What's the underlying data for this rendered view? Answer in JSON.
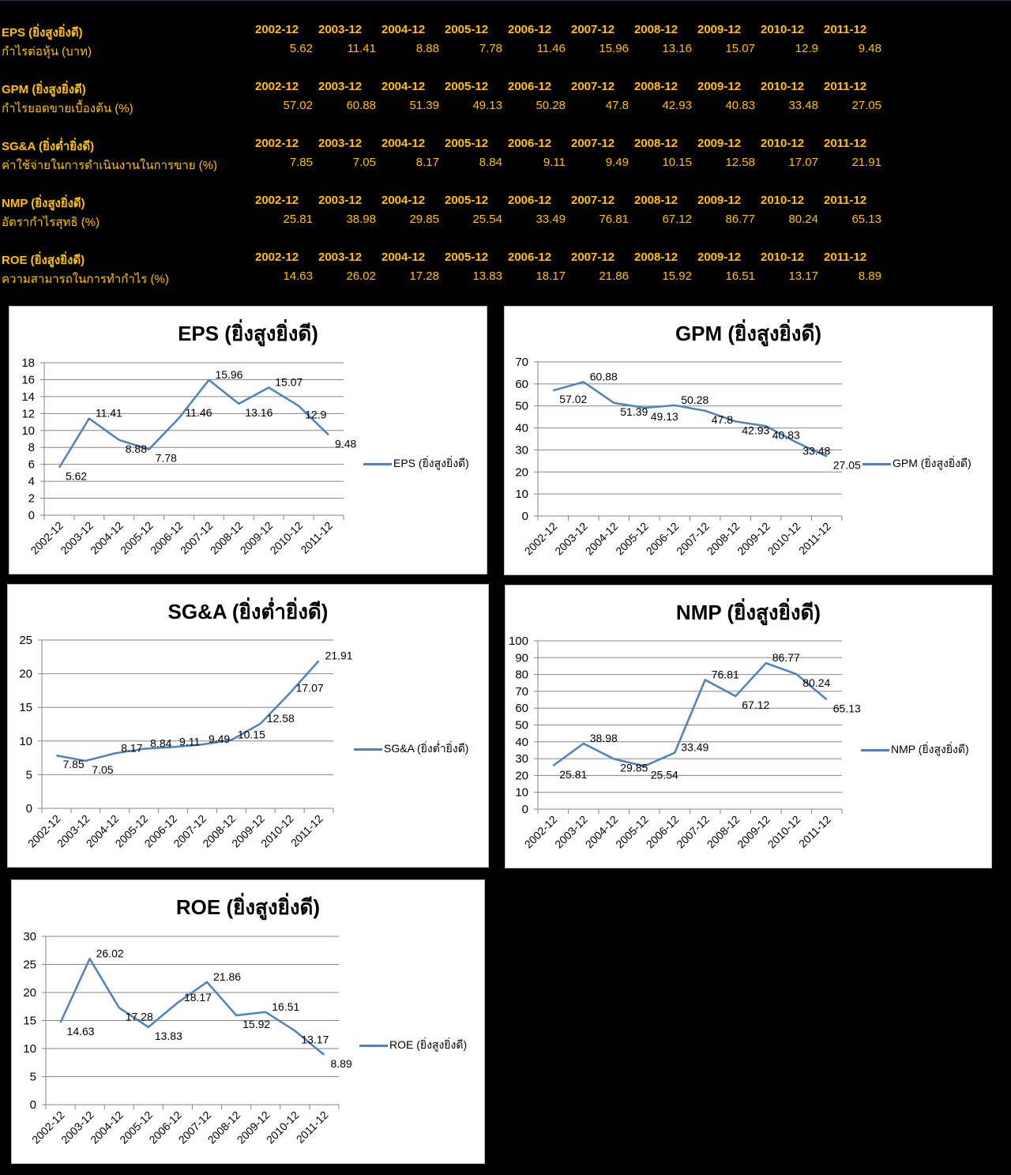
{
  "table": {
    "metrics": [
      {
        "name": "EPS (ยิ่งสูงยิ่งดี)",
        "desc": "กำไรต่อหุ้น    (บาท)"
      },
      {
        "name": "GPM (ยิ่งสูงยิ่งดี)",
        "desc": "กำไรยอดขายเบื้องต้น    (%)"
      },
      {
        "name": "SG&A (ยิ่งต่ำยิ่งดี)",
        "desc": "ค่าใช้จ่ายในการดำเนินงานในการขาย    (%)"
      },
      {
        "name": "NMP (ยิ่งสูงยิ่งดี)",
        "desc": "อัตรากำไรสุทธิ    (%)"
      },
      {
        "name": "ROE (ยิ่งสูงยิ่งดี)",
        "desc": "ความสามารถในการทำกำไร    (%)"
      }
    ]
  },
  "colors": {
    "table_text": "#ffc000",
    "series": "#4f81bd",
    "background": "#000000"
  },
  "chart_data": [
    {
      "type": "line",
      "title": "EPS (ยิ่งสูงยิ่งดี)",
      "legend": "EPS (ยิ่งสูงยิ่งดี)",
      "legend_position": "right",
      "categories": [
        "2002-12",
        "2003-12",
        "2004-12",
        "2005-12",
        "2006-12",
        "2007-12",
        "2008-12",
        "2009-12",
        "2010-12",
        "2011-12"
      ],
      "values": [
        "5.62",
        "11.41",
        "8.88",
        "7.78",
        "11.46",
        "15.96",
        "13.16",
        "15.07",
        "12.9",
        "9.48"
      ],
      "ylim": [
        0,
        18
      ],
      "ystep": 2,
      "yticks": [
        "0",
        "2",
        "4",
        "6",
        "8",
        "10",
        "12",
        "14",
        "16",
        "18"
      ],
      "grid": true
    },
    {
      "type": "line",
      "title": "GPM (ยิ่งสูงยิ่งดี)",
      "legend": "GPM (ยิ่งสูงยิ่งดี)",
      "legend_position": "right",
      "categories": [
        "2002-12",
        "2003-12",
        "2004-12",
        "2005-12",
        "2006-12",
        "2007-12",
        "2008-12",
        "2009-12",
        "2010-12",
        "2011-12"
      ],
      "values": [
        "57.02",
        "60.88",
        "51.39",
        "49.13",
        "50.28",
        "47.8",
        "42.93",
        "40.83",
        "33.48",
        "27.05"
      ],
      "ylim": [
        0,
        70
      ],
      "ystep": 10,
      "yticks": [
        "0",
        "10",
        "20",
        "30",
        "40",
        "50",
        "60",
        "70"
      ],
      "grid": true
    },
    {
      "type": "line",
      "title": "SG&A (ยิ่งต่ำยิ่งดี)",
      "legend": "SG&A (ยิ่งต่ำยิ่งดี)",
      "legend_position": "right",
      "categories": [
        "2002-12",
        "2003-12",
        "2004-12",
        "2005-12",
        "2006-12",
        "2007-12",
        "2008-12",
        "2009-12",
        "2010-12",
        "2011-12"
      ],
      "values": [
        "7.85",
        "7.05",
        "8.17",
        "8.84",
        "9.11",
        "9.49",
        "10.15",
        "12.58",
        "17.07",
        "21.91"
      ],
      "ylim": [
        0,
        25
      ],
      "ystep": 5,
      "yticks": [
        "0",
        "5",
        "10",
        "15",
        "20",
        "25"
      ],
      "grid": true
    },
    {
      "type": "line",
      "title": "NMP (ยิ่งสูงยิ่งดี)",
      "legend": "NMP (ยิ่งสูงยิ่งดี)",
      "legend_position": "right",
      "categories": [
        "2002-12",
        "2003-12",
        "2004-12",
        "2005-12",
        "2006-12",
        "2007-12",
        "2008-12",
        "2009-12",
        "2010-12",
        "2011-12"
      ],
      "values": [
        "25.81",
        "38.98",
        "29.85",
        "25.54",
        "33.49",
        "76.81",
        "67.12",
        "86.77",
        "80.24",
        "65.13"
      ],
      "ylim": [
        0,
        100
      ],
      "ystep": 10,
      "yticks": [
        "0",
        "10",
        "20",
        "30",
        "40",
        "50",
        "60",
        "70",
        "80",
        "90",
        "100"
      ],
      "grid": true
    },
    {
      "type": "line",
      "title": "ROE (ยิ่งสูงยิ่งดี)",
      "legend": "ROE (ยิ่งสูงยิ่งดี)",
      "legend_position": "right",
      "categories": [
        "2002-12",
        "2003-12",
        "2004-12",
        "2005-12",
        "2006-12",
        "2007-12",
        "2008-12",
        "2009-12",
        "2010-12",
        "2011-12"
      ],
      "values": [
        "14.63",
        "26.02",
        "17.28",
        "13.83",
        "18.17",
        "21.86",
        "15.92",
        "16.51",
        "13.17",
        "8.89"
      ],
      "ylim": [
        0,
        30
      ],
      "ystep": 5,
      "yticks": [
        "0",
        "5",
        "10",
        "15",
        "20",
        "25",
        "30"
      ],
      "grid": true
    }
  ]
}
